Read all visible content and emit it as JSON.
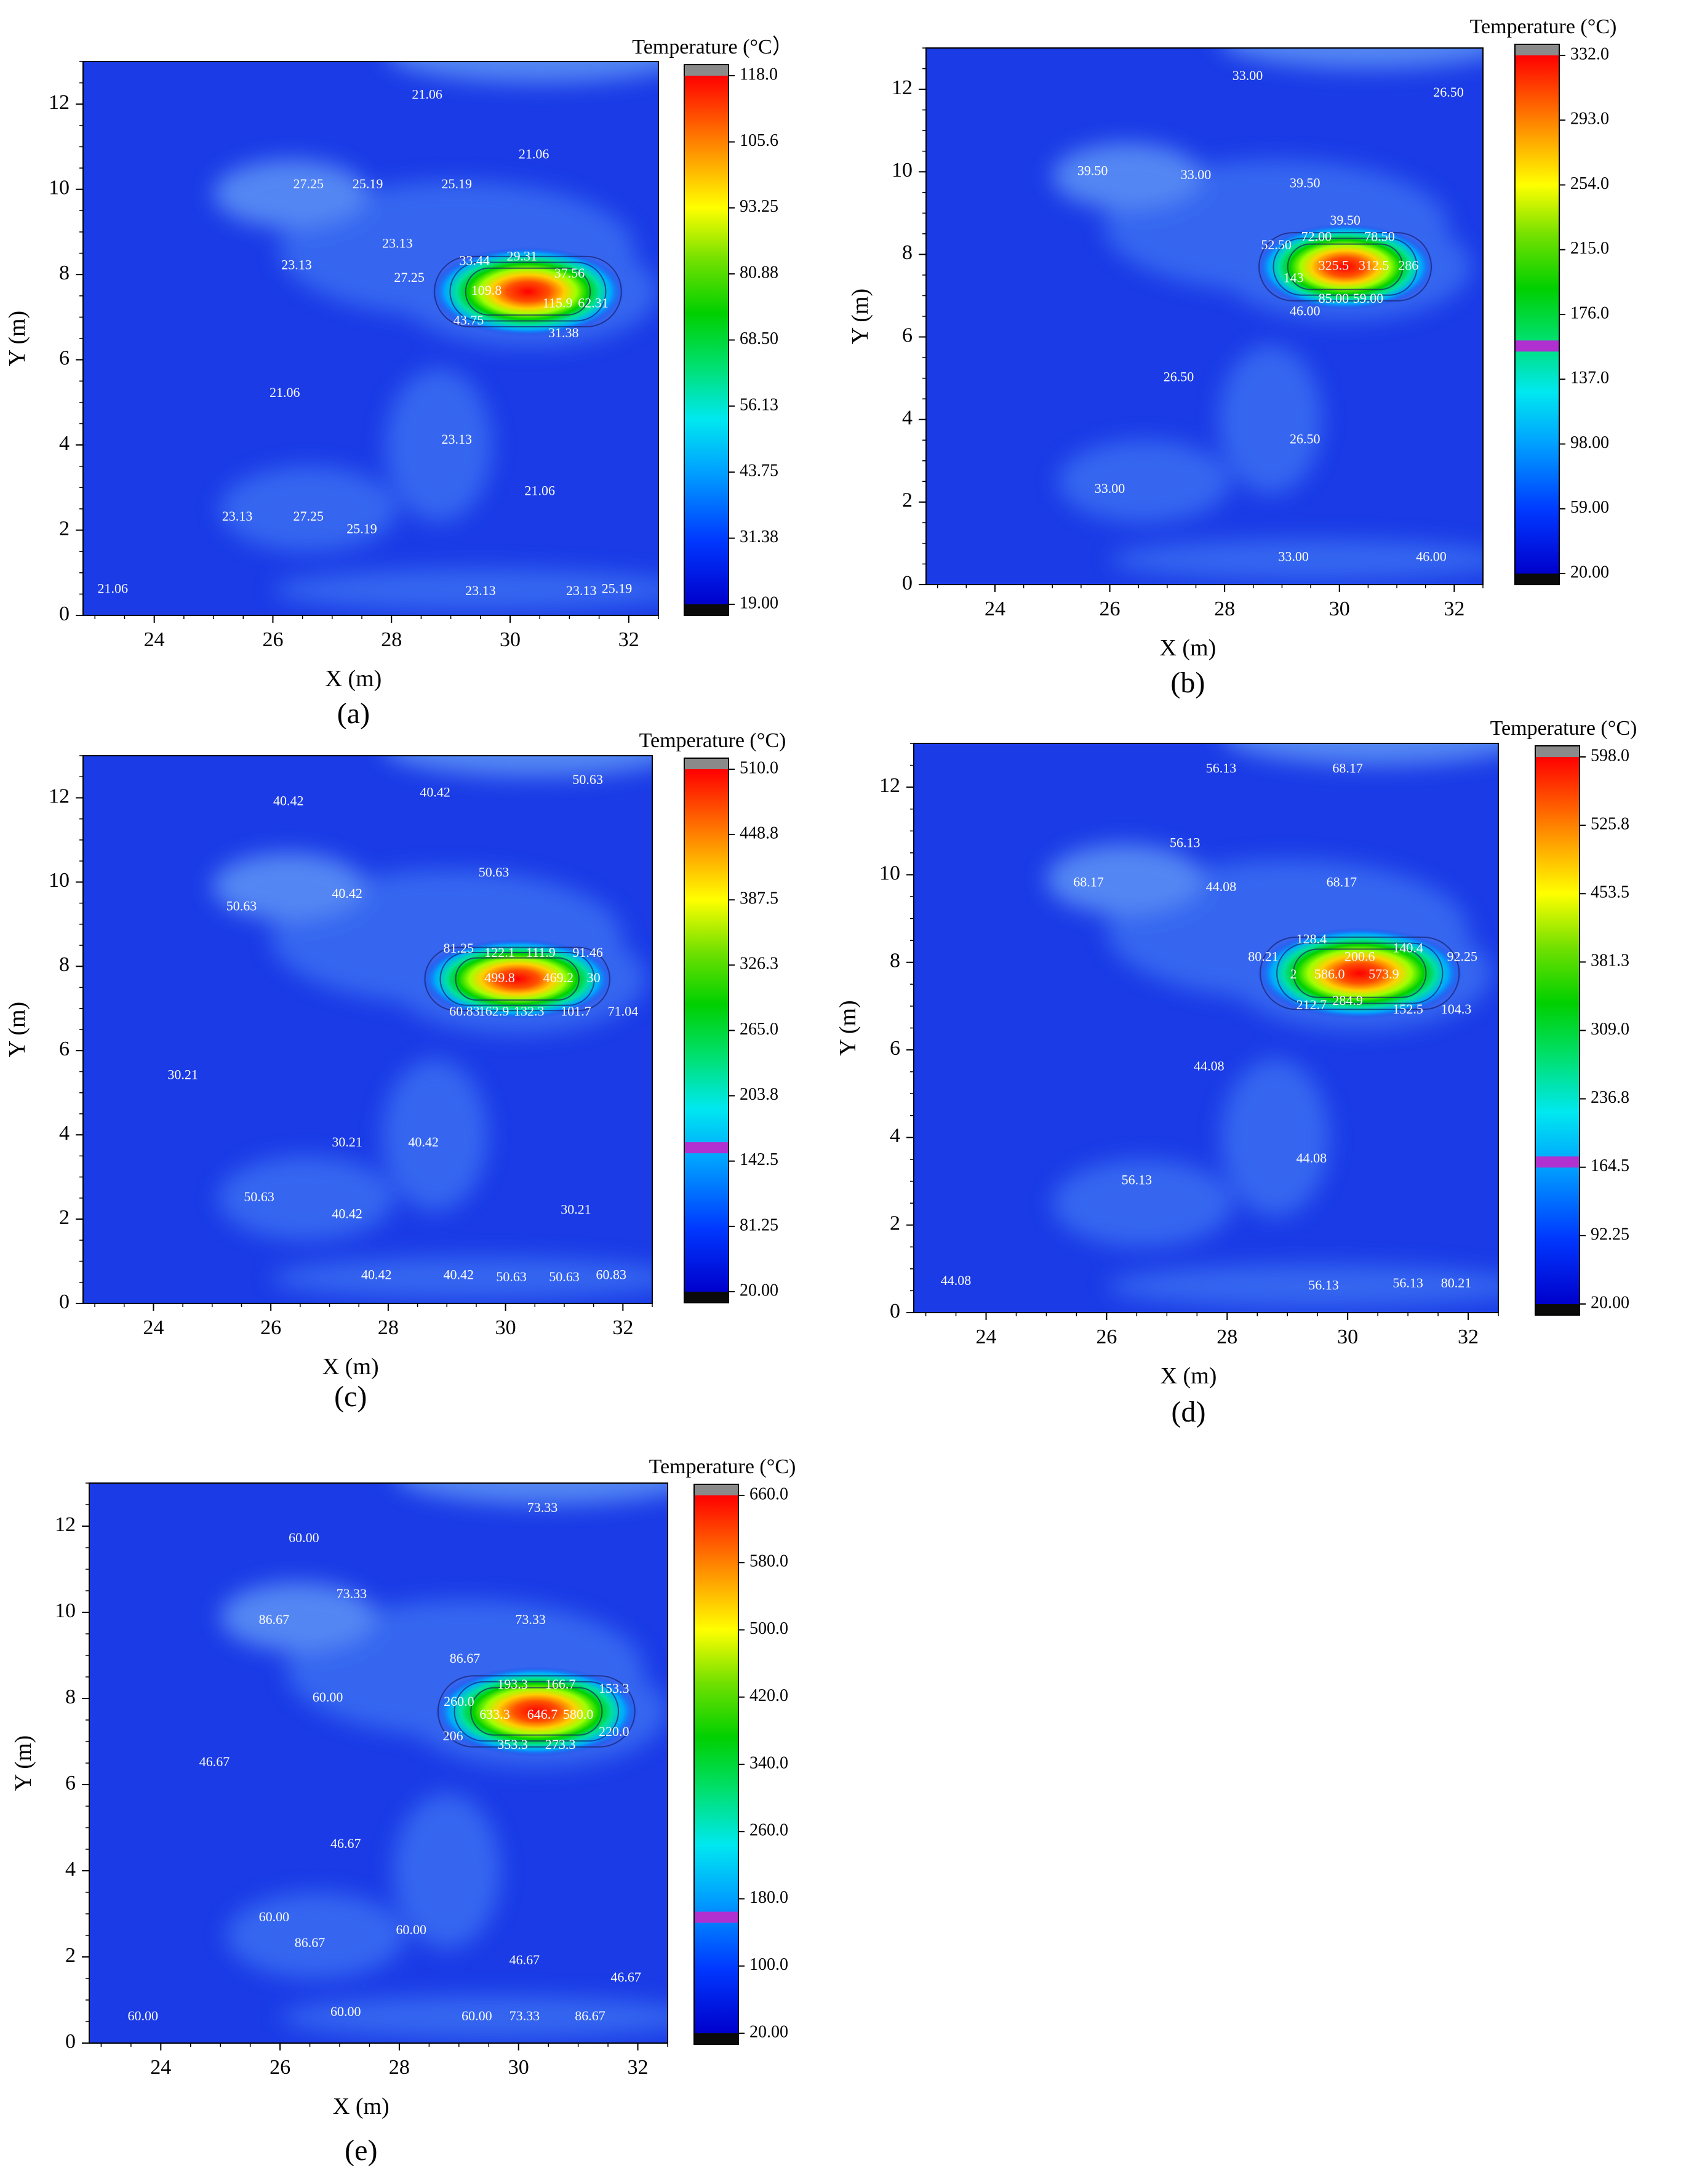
{
  "colors": {
    "field_base": "#1a3be6",
    "field_light": "#3a6ef2",
    "field_lighter": "#5e94f6",
    "contour": "#1a1f6e",
    "hot_magenta": "#b030d0",
    "colorbar_top": "#8a8a8a",
    "colorbar_bottom": "#0a0a0a"
  },
  "chart_data": [
    {
      "id": "a",
      "type": "heatmap",
      "panel_label": "(a)",
      "xlabel": "X (m)",
      "ylabel": "Y (m)",
      "xlim": [
        22.8,
        32.5
      ],
      "ylim": [
        0,
        13
      ],
      "xticks": [
        "24",
        "26",
        "28",
        "30",
        "32"
      ],
      "yticks": [
        "0",
        "2",
        "4",
        "6",
        "8",
        "10",
        "12"
      ],
      "colorbar": {
        "title": "Temperature (°C）",
        "min": 19.0,
        "max": 118.0,
        "ticks": [
          "118.0",
          "105.6",
          "93.25",
          "80.88",
          "68.50",
          "56.13",
          "43.75",
          "31.38",
          "19.00"
        ],
        "marker": null
      },
      "hotspot": {
        "cx": 30.3,
        "cy": 7.6,
        "rx": 1.05,
        "ry": 0.55
      },
      "annotations": [
        {
          "x": 28.6,
          "y": 12.2,
          "text": "21.06"
        },
        {
          "x": 30.4,
          "y": 10.8,
          "text": "21.06"
        },
        {
          "x": 26.6,
          "y": 10.1,
          "text": "27.25"
        },
        {
          "x": 27.6,
          "y": 10.1,
          "text": "25.19"
        },
        {
          "x": 29.1,
          "y": 10.1,
          "text": "25.19"
        },
        {
          "x": 28.1,
          "y": 8.7,
          "text": "23.13"
        },
        {
          "x": 26.4,
          "y": 8.2,
          "text": "23.13"
        },
        {
          "x": 28.3,
          "y": 7.9,
          "text": "27.25"
        },
        {
          "x": 29.4,
          "y": 8.3,
          "text": "33.44"
        },
        {
          "x": 30.2,
          "y": 8.4,
          "text": "29.31"
        },
        {
          "x": 31.0,
          "y": 8.0,
          "text": "37.56"
        },
        {
          "x": 29.6,
          "y": 7.6,
          "text": "109.8"
        },
        {
          "x": 30.8,
          "y": 7.3,
          "text": "115.9"
        },
        {
          "x": 31.4,
          "y": 7.3,
          "text": "62.31"
        },
        {
          "x": 29.3,
          "y": 6.9,
          "text": "43.75"
        },
        {
          "x": 30.9,
          "y": 6.6,
          "text": "31.38"
        },
        {
          "x": 26.2,
          "y": 5.2,
          "text": "21.06"
        },
        {
          "x": 29.1,
          "y": 4.1,
          "text": "23.13"
        },
        {
          "x": 30.5,
          "y": 2.9,
          "text": "21.06"
        },
        {
          "x": 25.4,
          "y": 2.3,
          "text": "23.13"
        },
        {
          "x": 26.6,
          "y": 2.3,
          "text": "27.25"
        },
        {
          "x": 27.5,
          "y": 2.0,
          "text": "25.19"
        },
        {
          "x": 23.3,
          "y": 0.6,
          "text": "21.06"
        },
        {
          "x": 29.5,
          "y": 0.55,
          "text": "23.13"
        },
        {
          "x": 31.2,
          "y": 0.55,
          "text": "23.13"
        },
        {
          "x": 31.8,
          "y": 0.6,
          "text": "25.19"
        }
      ]
    },
    {
      "id": "b",
      "type": "heatmap",
      "panel_label": "(b)",
      "xlabel": "X (m)",
      "ylabel": "Y (m)",
      "xlim": [
        22.8,
        32.5
      ],
      "ylim": [
        0,
        13
      ],
      "xticks": [
        "24",
        "26",
        "28",
        "30",
        "32"
      ],
      "yticks": [
        "0",
        "2",
        "4",
        "6",
        "8",
        "10",
        "12"
      ],
      "colorbar": {
        "title": "Temperature (°C)",
        "min": 20.0,
        "max": 332.0,
        "ticks": [
          "332.0",
          "293.0",
          "254.0",
          "215.0",
          "176.0",
          "137.0",
          "98.00",
          "59.00",
          "20.00"
        ],
        "marker": 157
      },
      "hotspot": {
        "cx": 30.1,
        "cy": 7.7,
        "rx": 1.0,
        "ry": 0.55
      },
      "annotations": [
        {
          "x": 28.4,
          "y": 12.3,
          "text": "33.00"
        },
        {
          "x": 31.9,
          "y": 11.9,
          "text": "26.50"
        },
        {
          "x": 25.7,
          "y": 10.0,
          "text": "39.50"
        },
        {
          "x": 27.5,
          "y": 9.9,
          "text": "33.00"
        },
        {
          "x": 29.4,
          "y": 9.7,
          "text": "39.50"
        },
        {
          "x": 30.1,
          "y": 8.8,
          "text": "39.50"
        },
        {
          "x": 28.9,
          "y": 8.2,
          "text": "52.50"
        },
        {
          "x": 29.6,
          "y": 8.4,
          "text": "72.00"
        },
        {
          "x": 30.7,
          "y": 8.4,
          "text": "78.50"
        },
        {
          "x": 29.9,
          "y": 7.7,
          "text": "325.5"
        },
        {
          "x": 30.6,
          "y": 7.7,
          "text": "312.5"
        },
        {
          "x": 31.2,
          "y": 7.7,
          "text": "286"
        },
        {
          "x": 29.2,
          "y": 7.4,
          "text": "143"
        },
        {
          "x": 29.9,
          "y": 6.9,
          "text": "85.00"
        },
        {
          "x": 30.5,
          "y": 6.9,
          "text": "59.00"
        },
        {
          "x": 29.4,
          "y": 6.6,
          "text": "46.00"
        },
        {
          "x": 27.2,
          "y": 5.0,
          "text": "26.50"
        },
        {
          "x": 29.4,
          "y": 3.5,
          "text": "26.50"
        },
        {
          "x": 26.0,
          "y": 2.3,
          "text": "33.00"
        },
        {
          "x": 29.2,
          "y": 0.65,
          "text": "33.00"
        },
        {
          "x": 31.6,
          "y": 0.65,
          "text": "46.00"
        }
      ]
    },
    {
      "id": "c",
      "type": "heatmap",
      "panel_label": "(c)",
      "xlabel": "X (m)",
      "ylabel": "Y (m)",
      "xlim": [
        22.8,
        32.5
      ],
      "ylim": [
        0,
        13
      ],
      "xticks": [
        "24",
        "26",
        "28",
        "30",
        "32"
      ],
      "yticks": [
        "0",
        "2",
        "4",
        "6",
        "8",
        "10",
        "12"
      ],
      "colorbar": {
        "title": "Temperature (°C)",
        "min": 20.0,
        "max": 510.0,
        "ticks": [
          "510.0",
          "448.8",
          "387.5",
          "326.3",
          "265.0",
          "203.8",
          "142.5",
          "81.25",
          "20.00"
        ],
        "marker": 155
      },
      "hotspot": {
        "cx": 30.2,
        "cy": 7.7,
        "rx": 1.05,
        "ry": 0.5
      },
      "annotations": [
        {
          "x": 26.3,
          "y": 11.9,
          "text": "40.42"
        },
        {
          "x": 28.8,
          "y": 12.1,
          "text": "40.42"
        },
        {
          "x": 31.4,
          "y": 12.4,
          "text": "50.63"
        },
        {
          "x": 29.8,
          "y": 10.2,
          "text": "50.63"
        },
        {
          "x": 27.3,
          "y": 9.7,
          "text": "40.42"
        },
        {
          "x": 25.5,
          "y": 9.4,
          "text": "50.63"
        },
        {
          "x": 29.2,
          "y": 8.4,
          "text": "81.25"
        },
        {
          "x": 29.9,
          "y": 8.3,
          "text": "122.1"
        },
        {
          "x": 30.6,
          "y": 8.3,
          "text": "111.9"
        },
        {
          "x": 31.4,
          "y": 8.3,
          "text": "91.46"
        },
        {
          "x": 29.9,
          "y": 7.7,
          "text": "499.8"
        },
        {
          "x": 30.9,
          "y": 7.7,
          "text": "469.2"
        },
        {
          "x": 31.5,
          "y": 7.7,
          "text": "30"
        },
        {
          "x": 29.3,
          "y": 6.9,
          "text": "60.83"
        },
        {
          "x": 29.8,
          "y": 6.9,
          "text": "162.9"
        },
        {
          "x": 30.4,
          "y": 6.9,
          "text": "132.3"
        },
        {
          "x": 31.2,
          "y": 6.9,
          "text": "101.7"
        },
        {
          "x": 32.0,
          "y": 6.9,
          "text": "71.04"
        },
        {
          "x": 24.5,
          "y": 5.4,
          "text": "30.21"
        },
        {
          "x": 27.3,
          "y": 3.8,
          "text": "30.21"
        },
        {
          "x": 28.6,
          "y": 3.8,
          "text": "40.42"
        },
        {
          "x": 25.8,
          "y": 2.5,
          "text": "50.63"
        },
        {
          "x": 27.3,
          "y": 2.1,
          "text": "40.42"
        },
        {
          "x": 31.2,
          "y": 2.2,
          "text": "30.21"
        },
        {
          "x": 27.8,
          "y": 0.65,
          "text": "40.42"
        },
        {
          "x": 29.2,
          "y": 0.65,
          "text": "40.42"
        },
        {
          "x": 30.1,
          "y": 0.6,
          "text": "50.63"
        },
        {
          "x": 31.0,
          "y": 0.6,
          "text": "50.63"
        },
        {
          "x": 31.8,
          "y": 0.65,
          "text": "60.83"
        }
      ]
    },
    {
      "id": "d",
      "type": "heatmap",
      "panel_label": "(d)",
      "xlabel": "X (m)",
      "ylabel": "Y (m)",
      "xlim": [
        22.8,
        32.5
      ],
      "ylim": [
        0,
        13
      ],
      "xticks": [
        "24",
        "26",
        "28",
        "30",
        "32"
      ],
      "yticks": [
        "0",
        "2",
        "4",
        "6",
        "8",
        "10",
        "12"
      ],
      "colorbar": {
        "title": "Temperature (°C)",
        "min": 20.0,
        "max": 598.0,
        "ticks": [
          "598.0",
          "525.8",
          "453.5",
          "381.3",
          "309.0",
          "236.8",
          "164.5",
          "92.25",
          "20.00"
        ],
        "marker": 170
      },
      "hotspot": {
        "cx": 30.2,
        "cy": 7.75,
        "rx": 1.1,
        "ry": 0.55
      },
      "annotations": [
        {
          "x": 27.9,
          "y": 12.4,
          "text": "56.13"
        },
        {
          "x": 30.0,
          "y": 12.4,
          "text": "68.17"
        },
        {
          "x": 27.3,
          "y": 10.7,
          "text": "56.13"
        },
        {
          "x": 25.7,
          "y": 9.8,
          "text": "68.17"
        },
        {
          "x": 27.9,
          "y": 9.7,
          "text": "44.08"
        },
        {
          "x": 29.9,
          "y": 9.8,
          "text": "68.17"
        },
        {
          "x": 28.6,
          "y": 8.1,
          "text": "80.21"
        },
        {
          "x": 29.4,
          "y": 8.5,
          "text": "128.4"
        },
        {
          "x": 30.2,
          "y": 8.1,
          "text": "200.6"
        },
        {
          "x": 31.0,
          "y": 8.3,
          "text": "140.4"
        },
        {
          "x": 31.9,
          "y": 8.1,
          "text": "92.25"
        },
        {
          "x": 29.7,
          "y": 7.7,
          "text": "586.0"
        },
        {
          "x": 30.6,
          "y": 7.7,
          "text": "573.9"
        },
        {
          "x": 29.1,
          "y": 7.7,
          "text": "2"
        },
        {
          "x": 29.4,
          "y": 7.0,
          "text": "212.7"
        },
        {
          "x": 30.0,
          "y": 7.1,
          "text": "284.9"
        },
        {
          "x": 31.0,
          "y": 6.9,
          "text": "152.5"
        },
        {
          "x": 31.8,
          "y": 6.9,
          "text": "104.3"
        },
        {
          "x": 27.7,
          "y": 5.6,
          "text": "44.08"
        },
        {
          "x": 29.4,
          "y": 3.5,
          "text": "44.08"
        },
        {
          "x": 26.5,
          "y": 3.0,
          "text": "56.13"
        },
        {
          "x": 23.5,
          "y": 0.7,
          "text": "44.08"
        },
        {
          "x": 29.6,
          "y": 0.6,
          "text": "56.13"
        },
        {
          "x": 31.0,
          "y": 0.65,
          "text": "56.13"
        },
        {
          "x": 31.8,
          "y": 0.65,
          "text": "80.21"
        }
      ]
    },
    {
      "id": "e",
      "type": "heatmap",
      "panel_label": "(e)",
      "xlabel": "X (m)",
      "ylabel": "Y (m)",
      "xlim": [
        22.8,
        32.5
      ],
      "ylim": [
        0,
        13
      ],
      "xticks": [
        "24",
        "26",
        "28",
        "30",
        "32"
      ],
      "yticks": [
        "0",
        "2",
        "4",
        "6",
        "8",
        "10",
        "12"
      ],
      "colorbar": {
        "title": "Temperature (°C)",
        "min": 20.0,
        "max": 660.0,
        "ticks": [
          "660.0",
          "580.0",
          "500.0",
          "420.0",
          "340.0",
          "260.0",
          "180.0",
          "100.0",
          "20.00"
        ],
        "marker": 158
      },
      "hotspot": {
        "cx": 30.3,
        "cy": 7.7,
        "rx": 1.1,
        "ry": 0.55
      },
      "annotations": [
        {
          "x": 30.4,
          "y": 12.4,
          "text": "73.33"
        },
        {
          "x": 26.4,
          "y": 11.7,
          "text": "60.00"
        },
        {
          "x": 27.2,
          "y": 10.4,
          "text": "73.33"
        },
        {
          "x": 25.9,
          "y": 9.8,
          "text": "86.67"
        },
        {
          "x": 30.2,
          "y": 9.8,
          "text": "73.33"
        },
        {
          "x": 29.1,
          "y": 8.9,
          "text": "86.67"
        },
        {
          "x": 26.8,
          "y": 8.0,
          "text": "60.00"
        },
        {
          "x": 29.0,
          "y": 7.9,
          "text": "260.0"
        },
        {
          "x": 29.9,
          "y": 8.3,
          "text": "193.3"
        },
        {
          "x": 30.7,
          "y": 8.3,
          "text": "166.7"
        },
        {
          "x": 31.6,
          "y": 8.2,
          "text": "153.3"
        },
        {
          "x": 29.6,
          "y": 7.6,
          "text": "633.3"
        },
        {
          "x": 30.4,
          "y": 7.6,
          "text": "646.7"
        },
        {
          "x": 31.0,
          "y": 7.6,
          "text": "580.0"
        },
        {
          "x": 31.6,
          "y": 7.2,
          "text": "220.0"
        },
        {
          "x": 28.9,
          "y": 7.1,
          "text": "206"
        },
        {
          "x": 29.9,
          "y": 6.9,
          "text": "353.3"
        },
        {
          "x": 30.7,
          "y": 6.9,
          "text": "273.3"
        },
        {
          "x": 24.9,
          "y": 6.5,
          "text": "46.67"
        },
        {
          "x": 27.1,
          "y": 4.6,
          "text": "46.67"
        },
        {
          "x": 25.9,
          "y": 2.9,
          "text": "60.00"
        },
        {
          "x": 26.5,
          "y": 2.3,
          "text": "86.67"
        },
        {
          "x": 28.2,
          "y": 2.6,
          "text": "60.00"
        },
        {
          "x": 30.1,
          "y": 1.9,
          "text": "46.67"
        },
        {
          "x": 31.8,
          "y": 1.5,
          "text": "46.67"
        },
        {
          "x": 23.7,
          "y": 0.6,
          "text": "60.00"
        },
        {
          "x": 27.1,
          "y": 0.7,
          "text": "60.00"
        },
        {
          "x": 29.3,
          "y": 0.6,
          "text": "60.00"
        },
        {
          "x": 30.1,
          "y": 0.6,
          "text": "73.33"
        },
        {
          "x": 31.2,
          "y": 0.6,
          "text": "86.67"
        }
      ]
    }
  ]
}
